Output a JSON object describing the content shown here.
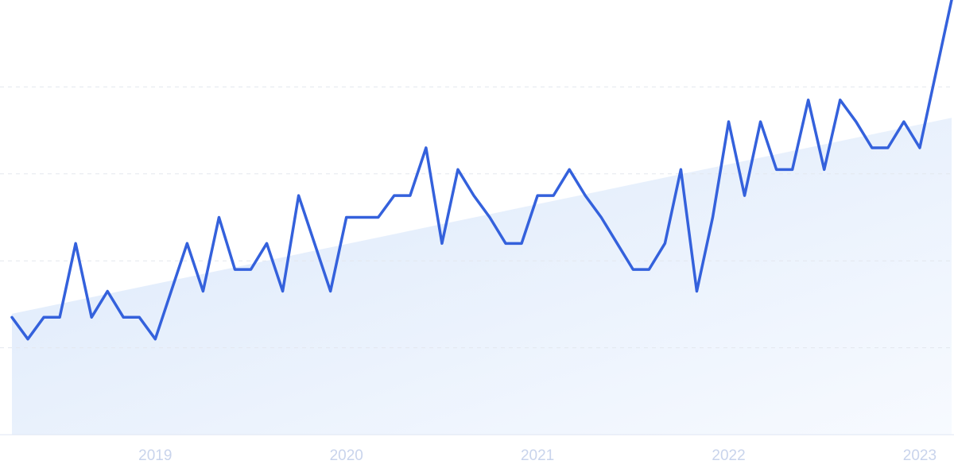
{
  "chart_data": {
    "type": "line",
    "series": [
      {
        "color": "#3461dc",
        "values": [
          27,
          22,
          27,
          27,
          44,
          27,
          33,
          27,
          27,
          22,
          33,
          44,
          33,
          50,
          38,
          38,
          44,
          33,
          55,
          44,
          33,
          50,
          50,
          50,
          55,
          55,
          66,
          44,
          61,
          55,
          50,
          44,
          44,
          55,
          55,
          61,
          55,
          50,
          44,
          38,
          38,
          44,
          61,
          33,
          50,
          72,
          55,
          72,
          61,
          61,
          77,
          61,
          77,
          72,
          66,
          66,
          72,
          66,
          83,
          100
        ]
      }
    ],
    "trend": [
      27.8,
      72.9
    ],
    "xlim": [
      0,
      59
    ],
    "xticks": [
      {
        "value": 9,
        "label": "2019"
      },
      {
        "value": 21,
        "label": "2020"
      },
      {
        "value": 33,
        "label": "2021"
      },
      {
        "value": 45,
        "label": "2022"
      },
      {
        "value": 57,
        "label": "2023"
      }
    ],
    "ylim": [
      0,
      100
    ],
    "yticks": [
      0,
      20,
      40,
      60,
      80
    ],
    "grid": true
  }
}
